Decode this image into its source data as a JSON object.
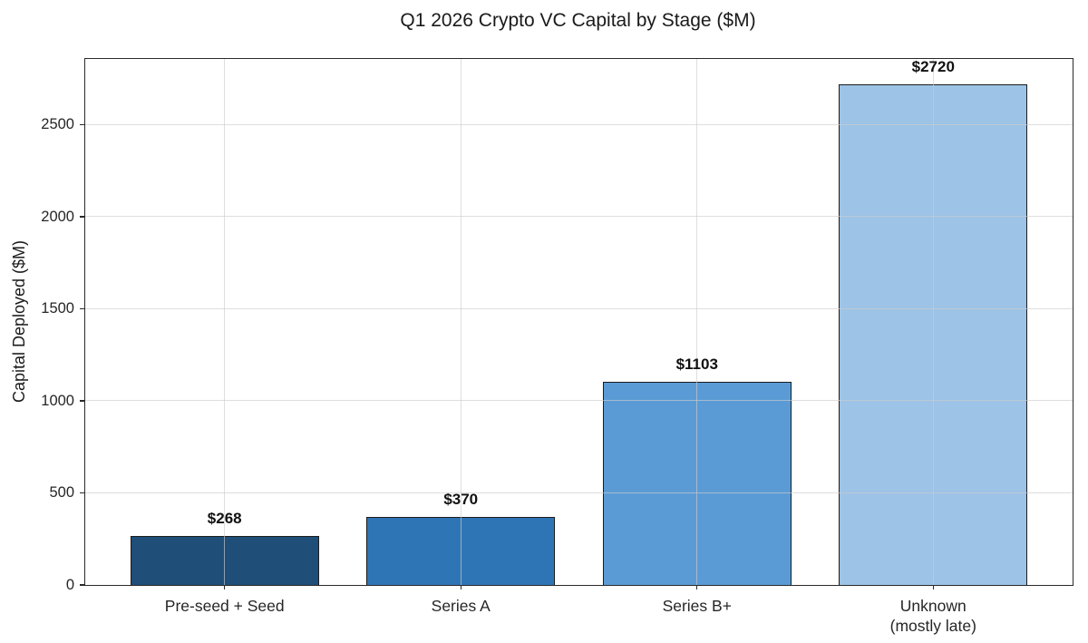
{
  "chart_data": {
    "type": "bar",
    "title": "Q1 2026 Crypto VC Capital by Stage ($M)",
    "xlabel": "",
    "ylabel": "Capital Deployed ($M)",
    "categories": [
      "Pre-seed + Seed",
      "Series A",
      "Series B+",
      "Unknown\n(mostly late)"
    ],
    "values": [
      268,
      370,
      1103,
      2720
    ],
    "value_labels": [
      "$268",
      "$370",
      "$1103",
      "$2720"
    ],
    "bar_colors": [
      "#1f4e79",
      "#2e75b6",
      "#5b9bd5",
      "#9dc3e6"
    ],
    "bar_edge_color": "#1c1c1c",
    "yticks": [
      0,
      500,
      1000,
      1500,
      2000,
      2500
    ],
    "ylim": [
      0,
      2856
    ],
    "grid": true,
    "grid_on_top_of_bars": true,
    "legend_position": "none",
    "bar_width_fraction": 0.8
  }
}
